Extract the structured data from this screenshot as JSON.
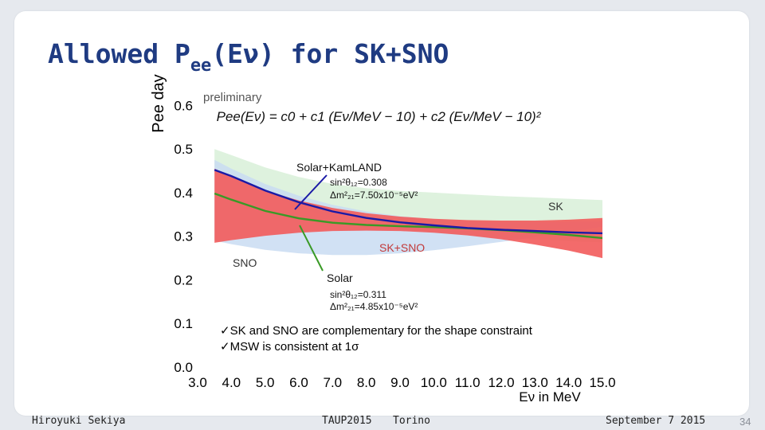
{
  "slide": {
    "title_main": "Allowed P",
    "title_sub": "ee",
    "title_rest": "(Eν) for SK+SNO"
  },
  "footer": {
    "author": "Hiroyuki Sekiya",
    "conference": "TAUP2015",
    "city": "Torino",
    "date": "September 7 2015",
    "page": "34"
  },
  "chart_data": {
    "type": "line",
    "xlabel": "Eν in MeV",
    "ylabel": "Pee day",
    "xlim": [
      3.0,
      15.0
    ],
    "ylim": [
      0.0,
      0.65
    ],
    "x_ticks": [
      "3.0",
      "4.0",
      "5.0",
      "6.0",
      "7.0",
      "8.0",
      "9.0",
      "10.0",
      "11.0",
      "12.0",
      "13.0",
      "14.0",
      "15.0"
    ],
    "y_ticks": [
      "0.0",
      "0.1",
      "0.2",
      "0.3",
      "0.4",
      "0.5",
      "0.6"
    ],
    "formula": "Pee(Eν) = c0 + c1 (Eν/MeV − 10) + c2 (Eν/MeV − 10)²",
    "preliminary_label": "preliminary",
    "x": [
      3.5,
      4,
      5,
      6,
      7,
      8,
      9,
      10,
      11,
      12,
      13,
      14,
      15
    ],
    "series": [
      {
        "name": "Solar+KamLAND",
        "color": "#1a1aa6",
        "values": [
          0.452,
          0.438,
          0.405,
          0.378,
          0.357,
          0.342,
          0.332,
          0.325,
          0.319,
          0.315,
          0.312,
          0.309,
          0.307
        ]
      },
      {
        "name": "Solar",
        "color": "#3a9a26",
        "values": [
          0.398,
          0.384,
          0.358,
          0.341,
          0.331,
          0.326,
          0.323,
          0.321,
          0.318,
          0.314,
          0.309,
          0.303,
          0.296
        ]
      },
      {
        "name": "SK+SNO",
        "color": "#f25b5b",
        "upper": [
          0.455,
          0.437,
          0.405,
          0.382,
          0.365,
          0.353,
          0.345,
          0.34,
          0.337,
          0.336,
          0.336,
          0.338,
          0.342
        ],
        "lower": [
          0.285,
          0.291,
          0.301,
          0.308,
          0.312,
          0.313,
          0.312,
          0.308,
          0.302,
          0.293,
          0.281,
          0.267,
          0.25
        ]
      },
      {
        "name": "SNO",
        "color": "#c9dcf2",
        "upper": [
          0.475,
          0.455,
          0.42,
          0.393,
          0.372,
          0.357,
          0.346,
          0.339,
          0.334,
          0.332,
          0.332,
          0.333,
          0.335
        ],
        "lower": [
          0.29,
          0.282,
          0.269,
          0.261,
          0.257,
          0.257,
          0.261,
          0.268,
          0.277,
          0.287,
          0.298,
          0.31,
          0.322
        ]
      },
      {
        "name": "SK",
        "color": "#d8f0d8",
        "upper": [
          0.5,
          0.486,
          0.458,
          0.436,
          0.42,
          0.41,
          0.404,
          0.4,
          0.396,
          0.392,
          0.389,
          0.386,
          0.383
        ],
        "lower": [
          0.452,
          0.433,
          0.398,
          0.367,
          0.342,
          0.325,
          0.315,
          0.308,
          0.302,
          0.297,
          0.293,
          0.289,
          0.286
        ]
      }
    ],
    "annotations": {
      "solar_kamland": {
        "label": "Solar+KamLAND",
        "param1": "sin²θ₁₂=0.308",
        "param2": "Δm²₂₁=7.50x10⁻⁵eV²"
      },
      "solar": {
        "label": "Solar",
        "param1": "sin²θ₁₂=0.311",
        "param2": "Δm²₂₁=4.85x10⁻⁵eV²"
      },
      "sk": "SK",
      "sno": "SNO",
      "sk_sno": "SK+SNO",
      "checks": [
        "✓SK and SNO are complementary for the shape constraint",
        "✓MSW is consistent at 1σ"
      ]
    }
  }
}
